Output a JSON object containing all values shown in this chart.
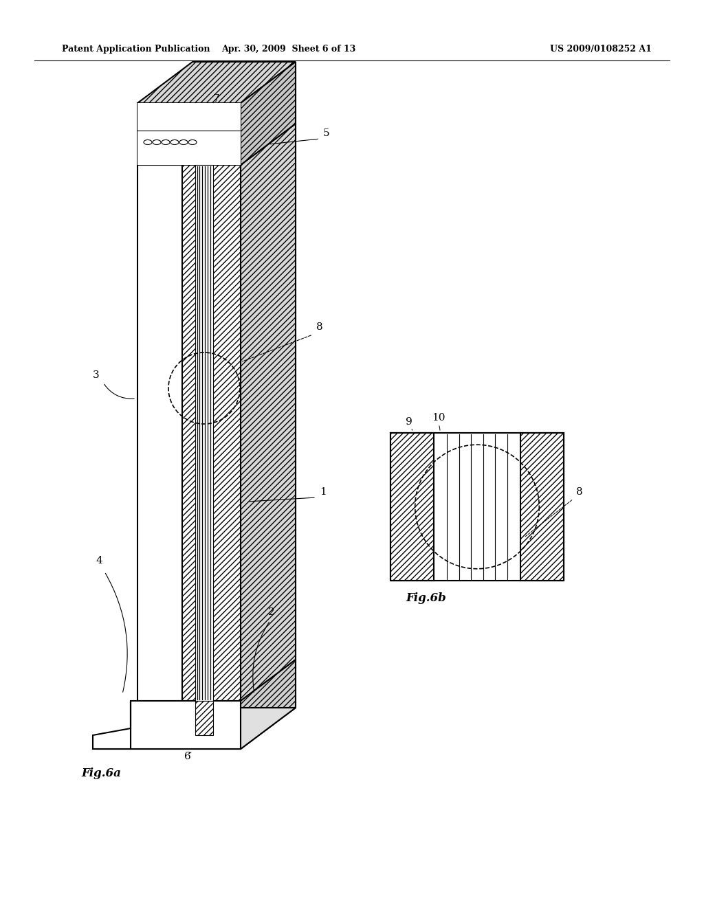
{
  "title_left": "Patent Application Publication",
  "title_mid": "Apr. 30, 2009  Sheet 6 of 13",
  "title_right": "US 2009/0108252 A1",
  "fig6a_label": "Fig.6a",
  "fig6b_label": "Fig.6b",
  "bg_color": "#ffffff",
  "line_color": "#000000"
}
